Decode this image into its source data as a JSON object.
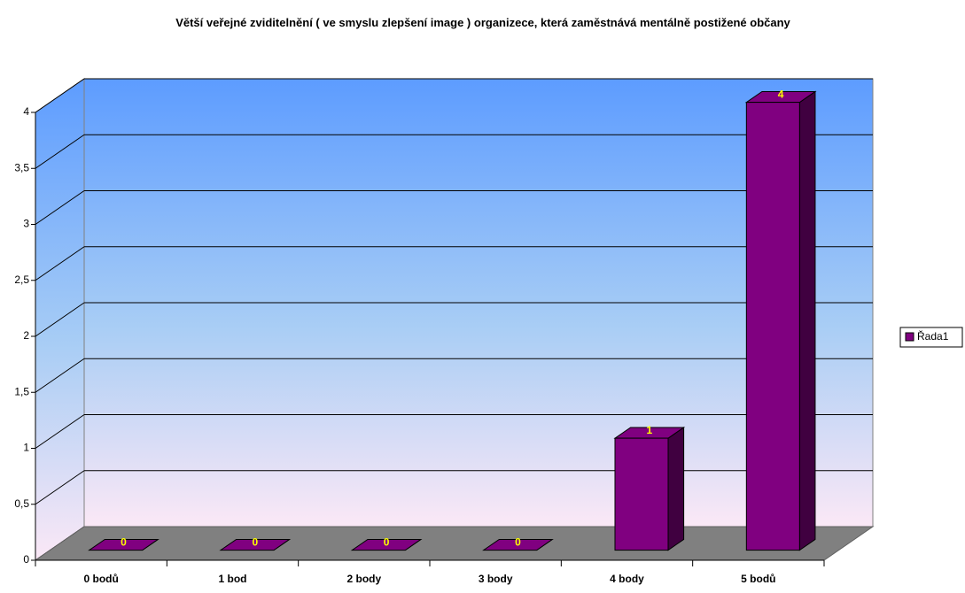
{
  "chart_data": {
    "type": "bar3d",
    "title": "Větší veřejné zviditelnění ( ve smyslu zlepšení image ) organizece, která zaměstnává mentálně postižené občany",
    "categories": [
      "0 bodů",
      "1 bod",
      "2 body",
      "3 body",
      "4 body",
      "5 bodů"
    ],
    "series": [
      {
        "name": "Řada1",
        "color": "#800080",
        "values": [
          0,
          0,
          0,
          0,
          1,
          4
        ]
      }
    ],
    "ylim": [
      0,
      4
    ],
    "yticks": [
      0,
      {
        "value": 0.5,
        "label": "0,5"
      },
      1,
      {
        "value": 1.5,
        "label": "1,5"
      },
      2,
      {
        "value": 2.5,
        "label": "2,5"
      },
      3,
      {
        "value": 3.5,
        "label": "3,5"
      },
      4
    ],
    "grid": true,
    "legend": "right"
  }
}
